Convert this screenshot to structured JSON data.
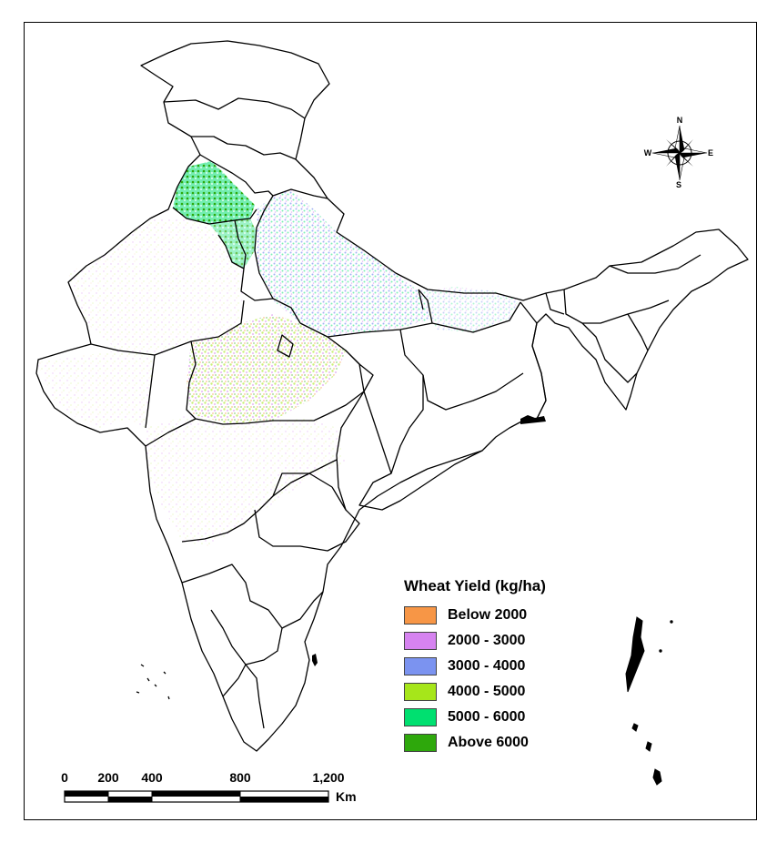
{
  "legend": {
    "title": "Wheat Yield (kg/ha)",
    "classes": [
      {
        "label": "Below 2000",
        "color": "#f79646"
      },
      {
        "label": "2000 - 3000",
        "color": "#d683f0"
      },
      {
        "label": "3000 - 4000",
        "color": "#7b93f0"
      },
      {
        "label": "4000 - 5000",
        "color": "#a6e61a"
      },
      {
        "label": "5000 - 6000",
        "color": "#00e070"
      },
      {
        "label": "Above 6000",
        "color": "#2ea80c"
      }
    ]
  },
  "scale_bar": {
    "ticks": [
      "0",
      "200",
      "400",
      "800",
      "1,200"
    ],
    "unit": "Km"
  },
  "north_arrow": {
    "n": "N",
    "s": "S",
    "e": "E",
    "w": "W"
  },
  "colors": {
    "boundary": "#000000",
    "background": "#ffffff"
  }
}
